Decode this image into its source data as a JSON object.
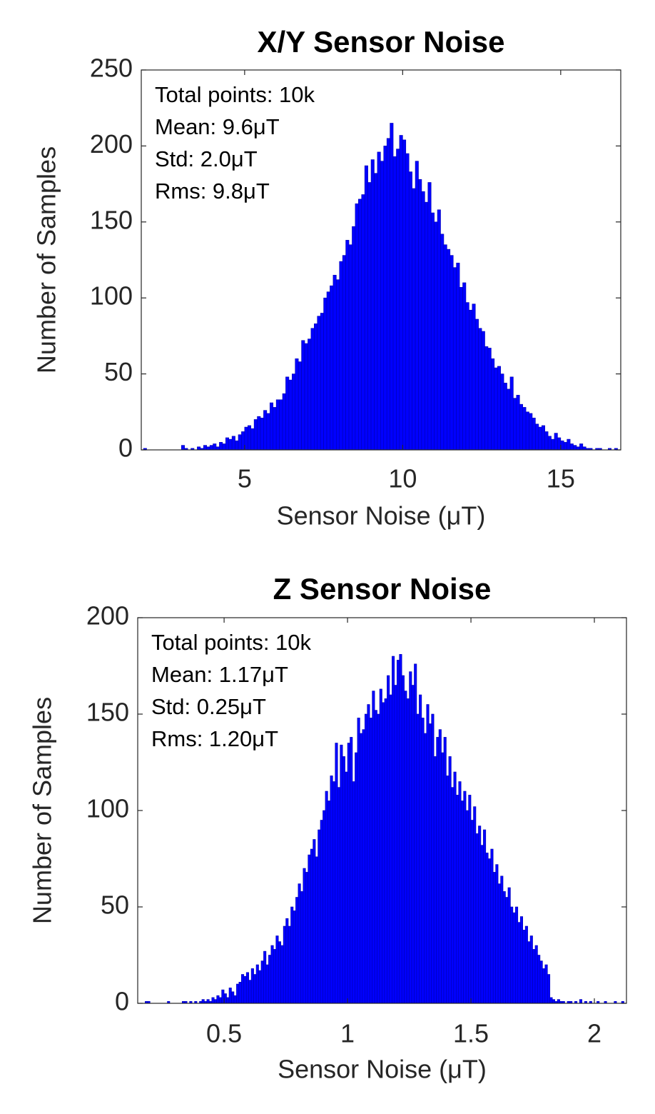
{
  "chart_data": [
    {
      "type": "histogram",
      "title": "X/Y Sensor Noise",
      "xlabel": "Sensor Noise (μT)",
      "ylabel": "Number of Samples",
      "annotations": [
        "Total points: 10k",
        "Mean: 9.6μT",
        "Std: 2.0μT",
        "Rms: 9.8μT"
      ],
      "color": "#0000ff",
      "xlim": [
        1.73,
        16.9
      ],
      "ylim": [
        0,
        250
      ],
      "xticks": [
        5,
        10,
        15
      ],
      "yticks": [
        0,
        50,
        100,
        150,
        200,
        250
      ],
      "bins": [
        1.8,
        1.9,
        2,
        2.1,
        2.2,
        2.3,
        2.4,
        2.5,
        2.6,
        2.7,
        2.8,
        2.9,
        3,
        3.1,
        3.2,
        3.3,
        3.4,
        3.5,
        3.6,
        3.7,
        3.8,
        3.9,
        4,
        4.1,
        4.2,
        4.3,
        4.4,
        4.5,
        4.6,
        4.7,
        4.8,
        4.9,
        5,
        5.1,
        5.2,
        5.3,
        5.4,
        5.5,
        5.6,
        5.7,
        5.8,
        5.9,
        6,
        6.1,
        6.2,
        6.3,
        6.4,
        6.5,
        6.6,
        6.7,
        6.8,
        6.9,
        7,
        7.1,
        7.2,
        7.3,
        7.4,
        7.5,
        7.6,
        7.7,
        7.8,
        7.9,
        8,
        8.1,
        8.2,
        8.3,
        8.4,
        8.5,
        8.6,
        8.7,
        8.8,
        8.9,
        9,
        9.1,
        9.2,
        9.3,
        9.4,
        9.5,
        9.6,
        9.7,
        9.8,
        9.9,
        10,
        10.1,
        10.2,
        10.3,
        10.4,
        10.5,
        10.6,
        10.7,
        10.8,
        10.9,
        11,
        11.1,
        11.2,
        11.3,
        11.4,
        11.5,
        11.6,
        11.7,
        11.8,
        11.9,
        12,
        12.1,
        12.2,
        12.3,
        12.4,
        12.5,
        12.6,
        12.7,
        12.8,
        12.9,
        13,
        13.1,
        13.2,
        13.3,
        13.4,
        13.5,
        13.6,
        13.7,
        13.8,
        13.9,
        14,
        14.1,
        14.2,
        14.3,
        14.4,
        14.5,
        14.6,
        14.7,
        14.8,
        14.9,
        15,
        15.1,
        15.2,
        15.3,
        15.4,
        15.5,
        15.6,
        15.7,
        15.8,
        15.9,
        16,
        16.1,
        16.2,
        16.3,
        16.4,
        16.5,
        16.6,
        16.7,
        16.8,
        16.9
      ],
      "counts": [
        1,
        0,
        0,
        0,
        0,
        0,
        0,
        0,
        0,
        0,
        0,
        0,
        3,
        1,
        0,
        1,
        0,
        2,
        1,
        3,
        2,
        3,
        4,
        2,
        5,
        4,
        8,
        7,
        9,
        6,
        10,
        12,
        15,
        16,
        14,
        20,
        22,
        21,
        26,
        24,
        31,
        28,
        33,
        33,
        37,
        48,
        46,
        50,
        60,
        58,
        72,
        70,
        73,
        80,
        83,
        88,
        90,
        100,
        104,
        108,
        115,
        112,
        124,
        128,
        138,
        135,
        147,
        162,
        165,
        168,
        187,
        176,
        191,
        182,
        196,
        190,
        200,
        205,
        215,
        193,
        198,
        207,
        204,
        195,
        183,
        172,
        190,
        178,
        170,
        163,
        176,
        156,
        150,
        158,
        142,
        135,
        132,
        128,
        120,
        123,
        107,
        110,
        97,
        92,
        96,
        86,
        80,
        78,
        68,
        67,
        60,
        54,
        55,
        50,
        44,
        40,
        48,
        34,
        36,
        30,
        28,
        25,
        24,
        21,
        17,
        15,
        16,
        12,
        9,
        7,
        11,
        8,
        6,
        5,
        7,
        4,
        3,
        2,
        4,
        2,
        1,
        1,
        0,
        1,
        1,
        0,
        0,
        1,
        0,
        1,
        0
      ]
    },
    {
      "type": "histogram",
      "title": "Z Sensor Noise",
      "xlabel": "Sensor Noise (μT)",
      "ylabel": "Number of Samples",
      "annotations": [
        "Total points: 10k",
        "Mean: 1.17μT",
        "Std: 0.25μT",
        "Rms: 1.20μT"
      ],
      "color": "#0000ff",
      "xlim": [
        0.15,
        2.13
      ],
      "ylim": [
        0,
        200
      ],
      "xticks": [
        0.5,
        1,
        1.5,
        2
      ],
      "yticks": [
        0,
        50,
        100,
        150,
        200
      ],
      "bins": [
        0.18,
        0.19,
        0.2,
        0.21,
        0.22,
        0.23,
        0.24,
        0.25,
        0.26,
        0.27,
        0.28,
        0.29,
        0.3,
        0.31,
        0.32,
        0.33,
        0.34,
        0.35,
        0.36,
        0.37,
        0.38,
        0.39,
        0.4,
        0.41,
        0.42,
        0.43,
        0.44,
        0.45,
        0.46,
        0.47,
        0.48,
        0.49,
        0.5,
        0.51,
        0.52,
        0.53,
        0.54,
        0.55,
        0.56,
        0.57,
        0.58,
        0.59,
        0.6,
        0.61,
        0.62,
        0.63,
        0.64,
        0.65,
        0.66,
        0.67,
        0.68,
        0.69,
        0.7,
        0.71,
        0.72,
        0.73,
        0.74,
        0.75,
        0.76,
        0.77,
        0.78,
        0.79,
        0.8,
        0.81,
        0.82,
        0.83,
        0.84,
        0.85,
        0.86,
        0.87,
        0.88,
        0.89,
        0.9,
        0.91,
        0.92,
        0.93,
        0.94,
        0.95,
        0.96,
        0.97,
        0.98,
        0.99,
        1,
        1.01,
        1.02,
        1.03,
        1.04,
        1.05,
        1.06,
        1.07,
        1.08,
        1.09,
        1.1,
        1.11,
        1.12,
        1.13,
        1.14,
        1.15,
        1.16,
        1.17,
        1.18,
        1.19,
        1.2,
        1.21,
        1.22,
        1.23,
        1.24,
        1.25,
        1.26,
        1.27,
        1.28,
        1.29,
        1.3,
        1.31,
        1.32,
        1.33,
        1.34,
        1.35,
        1.36,
        1.37,
        1.38,
        1.39,
        1.4,
        1.41,
        1.42,
        1.43,
        1.44,
        1.45,
        1.46,
        1.47,
        1.48,
        1.49,
        1.5,
        1.51,
        1.52,
        1.53,
        1.54,
        1.55,
        1.56,
        1.57,
        1.58,
        1.59,
        1.6,
        1.61,
        1.62,
        1.63,
        1.64,
        1.65,
        1.66,
        1.67,
        1.68,
        1.69,
        1.7,
        1.71,
        1.72,
        1.73,
        1.74,
        1.75,
        1.76,
        1.77,
        1.78,
        1.79,
        1.8,
        1.81,
        1.82,
        1.83,
        1.84,
        1.85,
        1.86,
        1.87,
        1.88,
        1.89,
        1.9,
        1.91,
        1.92,
        1.93,
        1.94,
        1.95,
        1.96,
        1.97,
        1.98,
        1.99,
        2,
        2.01,
        2.02,
        2.03,
        2.04,
        2.05,
        2.06,
        2.07,
        2.08,
        2.09,
        2.1,
        2.11,
        2.12
      ],
      "counts": [
        1,
        1,
        0,
        0,
        0,
        0,
        0,
        0,
        0,
        1,
        0,
        0,
        0,
        0,
        0,
        1,
        1,
        0,
        1,
        0,
        1,
        0,
        1,
        2,
        1,
        2,
        1,
        3,
        2,
        4,
        3,
        7,
        5,
        3,
        8,
        6,
        4,
        10,
        11,
        15,
        14,
        16,
        12,
        18,
        15,
        20,
        17,
        22,
        27,
        20,
        25,
        30,
        28,
        35,
        32,
        30,
        40,
        44,
        40,
        50,
        48,
        55,
        62,
        58,
        70,
        68,
        77,
        80,
        85,
        76,
        90,
        95,
        100,
        110,
        105,
        118,
        115,
        135,
        112,
        134,
        128,
        120,
        135,
        138,
        115,
        130,
        148,
        140,
        142,
        150,
        155,
        148,
        162,
        152,
        150,
        163,
        156,
        158,
        170,
        160,
        180,
        165,
        178,
        181,
        170,
        162,
        158,
        172,
        165,
        176,
        150,
        160,
        148,
        140,
        155,
        145,
        150,
        128,
        138,
        142,
        130,
        138,
        118,
        128,
        112,
        120,
        108,
        115,
        105,
        110,
        100,
        108,
        95,
        102,
        88,
        92,
        82,
        90,
        78,
        75,
        80,
        68,
        72,
        62,
        66,
        58,
        55,
        60,
        50,
        47,
        50,
        42,
        45,
        38,
        40,
        32,
        35,
        28,
        30,
        25,
        22,
        18,
        20,
        15,
        3,
        2,
        1,
        2,
        1,
        1,
        0,
        1,
        1,
        0,
        1,
        0,
        2,
        0,
        1,
        0,
        1,
        0,
        0,
        1,
        0,
        0,
        1,
        0,
        0,
        0,
        1,
        0,
        0,
        1
      ]
    }
  ]
}
